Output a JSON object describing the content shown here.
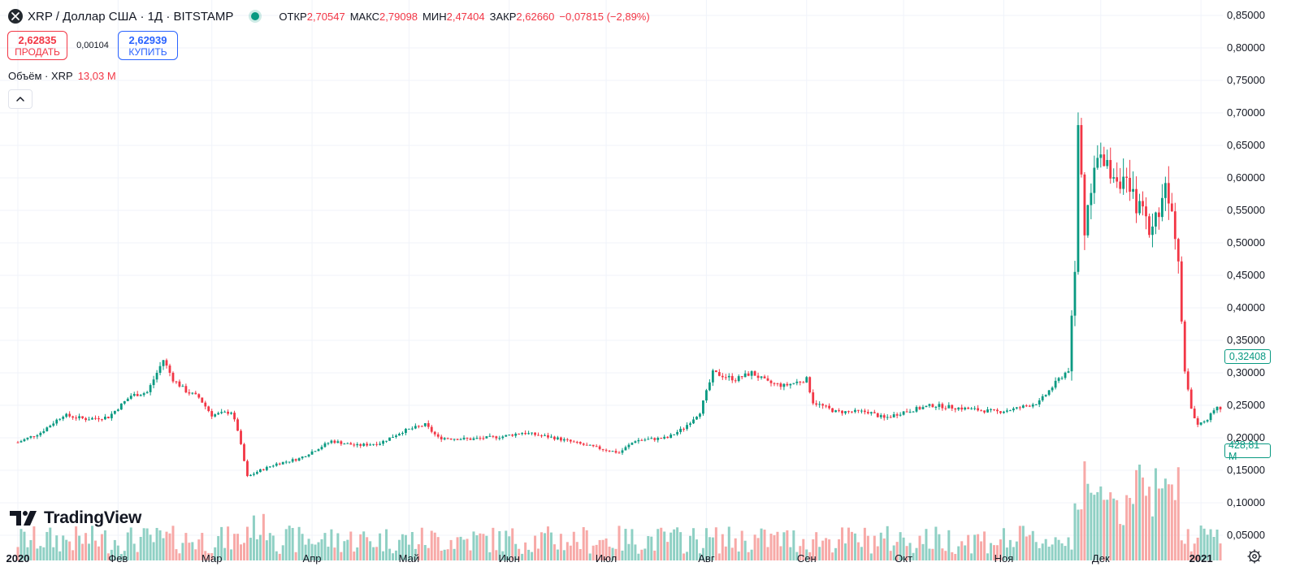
{
  "header": {
    "title": "XRP / Доллар США · 1Д · BITSTAMP",
    "ohlc": {
      "open_label": "ОТКР",
      "open": "2,70547",
      "high_label": "МАКС",
      "high": "2,79098",
      "low_label": "МИН",
      "low": "2,47404",
      "close_label": "ЗАКР",
      "close": "2,62660",
      "change": "−0,07815 (−2,89%)"
    }
  },
  "trade": {
    "sell_price": "2,62835",
    "sell_label": "ПРОДАТЬ",
    "spread": "0,00104",
    "buy_price": "2,62939",
    "buy_label": "КУПИТЬ"
  },
  "volume_legend": {
    "label": "Объём · XRP",
    "value": "13,03 M"
  },
  "logo_text": "TradingView",
  "colors": {
    "up": "#089981",
    "down": "#f23645",
    "vol_up": "#8fd0c4",
    "vol_down": "#f7a9a7",
    "grid": "#f0f3fa"
  },
  "chart_data": {
    "type": "candlestick",
    "title": "XRP / Доллар США · 1Д · BITSTAMP",
    "y_axis": {
      "ticks": [
        "0,05000",
        "0,10000",
        "0,15000",
        "0,20000",
        "0,25000",
        "0,30000",
        "0,35000",
        "0,40000",
        "0,45000",
        "0,50000",
        "0,55000",
        "0,60000",
        "0,65000",
        "0,70000",
        "0,75000",
        "0,80000",
        "0,85000"
      ],
      "ylim": [
        0.05,
        0.85
      ]
    },
    "x_axis": {
      "ticks": [
        {
          "label": "2020",
          "date": "2020-01-01",
          "bold": true
        },
        {
          "label": "Фев",
          "date": "2020-02-01"
        },
        {
          "label": "Мар",
          "date": "2020-03-01"
        },
        {
          "label": "Апр",
          "date": "2020-04-01"
        },
        {
          "label": "Май",
          "date": "2020-05-01"
        },
        {
          "label": "Июн",
          "date": "2020-06-01"
        },
        {
          "label": "Июл",
          "date": "2020-07-01"
        },
        {
          "label": "Авг",
          "date": "2020-08-01"
        },
        {
          "label": "Сен",
          "date": "2020-09-01"
        },
        {
          "label": "Окт",
          "date": "2020-10-01"
        },
        {
          "label": "Ноя",
          "date": "2020-11-01"
        },
        {
          "label": "Дек",
          "date": "2020-12-01"
        },
        {
          "label": "2021",
          "date": "2021-01-01",
          "bold": true
        }
      ],
      "range": [
        "2020-01-01",
        "2021-01-07"
      ]
    },
    "last_price": "0,32408",
    "last_volume": "428,81 M",
    "close_series": [
      [
        "2020-01-01",
        0.193
      ],
      [
        "2020-01-08",
        0.208
      ],
      [
        "2020-01-15",
        0.235
      ],
      [
        "2020-01-22",
        0.229
      ],
      [
        "2020-01-29",
        0.232
      ],
      [
        "2020-02-05",
        0.265
      ],
      [
        "2020-02-10",
        0.27
      ],
      [
        "2020-02-15",
        0.32
      ],
      [
        "2020-02-18",
        0.29
      ],
      [
        "2020-02-22",
        0.272
      ],
      [
        "2020-02-26",
        0.262
      ],
      [
        "2020-03-01",
        0.235
      ],
      [
        "2020-03-07",
        0.24
      ],
      [
        "2020-03-09",
        0.212
      ],
      [
        "2020-03-12",
        0.14
      ],
      [
        "2020-03-16",
        0.15
      ],
      [
        "2020-03-21",
        0.16
      ],
      [
        "2020-03-28",
        0.168
      ],
      [
        "2020-04-07",
        0.195
      ],
      [
        "2020-04-15",
        0.188
      ],
      [
        "2020-04-22",
        0.192
      ],
      [
        "2020-04-29",
        0.21
      ],
      [
        "2020-05-06",
        0.22
      ],
      [
        "2020-05-10",
        0.2
      ],
      [
        "2020-05-20",
        0.198
      ],
      [
        "2020-05-30",
        0.202
      ],
      [
        "2020-06-05",
        0.208
      ],
      [
        "2020-06-15",
        0.2
      ],
      [
        "2020-06-25",
        0.188
      ],
      [
        "2020-07-05",
        0.177
      ],
      [
        "2020-07-10",
        0.196
      ],
      [
        "2020-07-20",
        0.2
      ],
      [
        "2020-07-25",
        0.215
      ],
      [
        "2020-07-30",
        0.24
      ],
      [
        "2020-08-03",
        0.3
      ],
      [
        "2020-08-10",
        0.29
      ],
      [
        "2020-08-15",
        0.3
      ],
      [
        "2020-08-20",
        0.285
      ],
      [
        "2020-08-25",
        0.28
      ],
      [
        "2020-09-01",
        0.29
      ],
      [
        "2020-09-03",
        0.255
      ],
      [
        "2020-09-10",
        0.24
      ],
      [
        "2020-09-20",
        0.24
      ],
      [
        "2020-09-25",
        0.23
      ],
      [
        "2020-10-01",
        0.24
      ],
      [
        "2020-10-10",
        0.25
      ],
      [
        "2020-10-20",
        0.245
      ],
      [
        "2020-10-30",
        0.24
      ],
      [
        "2020-11-05",
        0.245
      ],
      [
        "2020-11-12",
        0.255
      ],
      [
        "2020-11-18",
        0.29
      ],
      [
        "2020-11-21",
        0.305
      ],
      [
        "2020-11-23",
        0.45
      ],
      [
        "2020-11-24",
        0.68
      ],
      [
        "2020-11-26",
        0.52
      ],
      [
        "2020-11-29",
        0.63
      ],
      [
        "2020-12-02",
        0.62
      ],
      [
        "2020-12-07",
        0.6
      ],
      [
        "2020-12-12",
        0.56
      ],
      [
        "2020-12-17",
        0.52
      ],
      [
        "2020-12-21",
        0.59
      ],
      [
        "2020-12-23",
        0.56
      ],
      [
        "2020-12-25",
        0.48
      ],
      [
        "2020-12-27",
        0.3
      ],
      [
        "2020-12-29",
        0.245
      ],
      [
        "2020-12-31",
        0.22
      ],
      [
        "2021-01-03",
        0.23
      ],
      [
        "2021-01-06",
        0.245
      ]
    ],
    "volume_scale_note": ""
  }
}
